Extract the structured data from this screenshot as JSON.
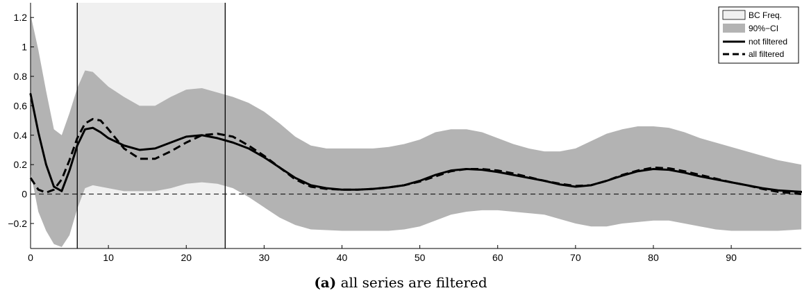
{
  "chart_data": {
    "type": "line",
    "title": "",
    "xlabel": "",
    "ylabel": "",
    "xlim": [
      0,
      99
    ],
    "ylim": [
      -0.37,
      1.3
    ],
    "x_ticks": [
      0,
      10,
      20,
      30,
      40,
      50,
      60,
      70,
      80,
      90
    ],
    "x_tick_labels": [
      "0",
      "10",
      "20",
      "30",
      "40",
      "50",
      "60",
      "70",
      "80",
      "90"
    ],
    "y_ticks": [
      -0.2,
      0,
      0.2,
      0.4,
      0.6,
      0.8,
      1,
      1.2
    ],
    "y_tick_labels": [
      "−0.2",
      "0",
      "0.2",
      "0.4",
      "0.6",
      "0.8",
      "1",
      "1.2"
    ],
    "grid": false,
    "zero_line": true,
    "bc_band": {
      "name": "BC Freq.",
      "x_start": 6,
      "x_end": 25,
      "color": "#f0f0f0"
    },
    "ci_band": {
      "name": "90%−CI",
      "color": "#b3b3b3",
      "x": [
        0,
        1,
        2,
        3,
        4,
        5,
        6,
        7,
        8,
        9,
        10,
        12,
        14,
        16,
        18,
        20,
        22,
        24,
        26,
        28,
        30,
        32,
        34,
        36,
        38,
        40,
        42,
        44,
        46,
        48,
        50,
        52,
        54,
        56,
        58,
        60,
        62,
        64,
        66,
        68,
        70,
        72,
        74,
        76,
        78,
        80,
        82,
        84,
        86,
        88,
        90,
        92,
        94,
        96,
        99
      ],
      "upper": [
        1.22,
        0.98,
        0.7,
        0.44,
        0.4,
        0.55,
        0.72,
        0.84,
        0.83,
        0.78,
        0.73,
        0.66,
        0.6,
        0.6,
        0.66,
        0.71,
        0.72,
        0.69,
        0.66,
        0.62,
        0.56,
        0.48,
        0.39,
        0.33,
        0.31,
        0.31,
        0.31,
        0.31,
        0.32,
        0.34,
        0.37,
        0.42,
        0.44,
        0.44,
        0.42,
        0.38,
        0.34,
        0.31,
        0.29,
        0.29,
        0.31,
        0.36,
        0.41,
        0.44,
        0.46,
        0.46,
        0.45,
        0.42,
        0.38,
        0.35,
        0.32,
        0.29,
        0.26,
        0.23,
        0.2
      ],
      "lower": [
        0.15,
        -0.12,
        -0.25,
        -0.34,
        -0.36,
        -0.28,
        -0.1,
        0.04,
        0.06,
        0.05,
        0.04,
        0.02,
        0.02,
        0.02,
        0.04,
        0.07,
        0.08,
        0.07,
        0.04,
        -0.02,
        -0.09,
        -0.16,
        -0.21,
        -0.24,
        -0.245,
        -0.25,
        -0.25,
        -0.25,
        -0.25,
        -0.24,
        -0.22,
        -0.18,
        -0.14,
        -0.12,
        -0.11,
        -0.11,
        -0.12,
        -0.13,
        -0.14,
        -0.17,
        -0.2,
        -0.22,
        -0.22,
        -0.2,
        -0.19,
        -0.18,
        -0.18,
        -0.2,
        -0.22,
        -0.24,
        -0.25,
        -0.25,
        -0.25,
        -0.25,
        -0.24
      ]
    },
    "series": [
      {
        "name": "not filtered",
        "style": "solid",
        "x": [
          0,
          1,
          2,
          3,
          4,
          5,
          6,
          7,
          8,
          9,
          10,
          12,
          14,
          16,
          18,
          20,
          22,
          24,
          26,
          28,
          30,
          32,
          34,
          36,
          38,
          40,
          42,
          44,
          46,
          48,
          50,
          52,
          54,
          56,
          58,
          60,
          62,
          64,
          66,
          68,
          70,
          72,
          74,
          76,
          78,
          80,
          82,
          84,
          86,
          88,
          90,
          92,
          94,
          96,
          99
        ],
        "values": [
          0.68,
          0.42,
          0.2,
          0.05,
          0.02,
          0.16,
          0.33,
          0.44,
          0.45,
          0.42,
          0.38,
          0.33,
          0.3,
          0.31,
          0.35,
          0.39,
          0.4,
          0.38,
          0.35,
          0.31,
          0.25,
          0.18,
          0.11,
          0.06,
          0.04,
          0.03,
          0.03,
          0.035,
          0.045,
          0.06,
          0.09,
          0.13,
          0.16,
          0.17,
          0.165,
          0.15,
          0.13,
          0.11,
          0.09,
          0.065,
          0.05,
          0.06,
          0.09,
          0.125,
          0.155,
          0.17,
          0.165,
          0.145,
          0.12,
          0.1,
          0.08,
          0.06,
          0.04,
          0.025,
          0.015
        ]
      },
      {
        "name": "all filtered",
        "style": "dashed",
        "x": [
          0,
          1,
          2,
          3,
          4,
          5,
          6,
          7,
          8,
          9,
          10,
          12,
          14,
          16,
          18,
          20,
          22,
          24,
          26,
          28,
          30,
          32,
          34,
          36,
          38,
          40,
          42,
          44,
          46,
          48,
          50,
          52,
          54,
          56,
          58,
          60,
          62,
          64,
          66,
          68,
          70,
          72,
          74,
          76,
          78,
          80,
          82,
          84,
          86,
          88,
          90,
          92,
          94,
          96,
          99
        ],
        "values": [
          0.11,
          0.03,
          0.01,
          0.03,
          0.1,
          0.23,
          0.38,
          0.48,
          0.51,
          0.5,
          0.44,
          0.31,
          0.24,
          0.24,
          0.29,
          0.35,
          0.4,
          0.41,
          0.39,
          0.33,
          0.26,
          0.18,
          0.1,
          0.05,
          0.035,
          0.03,
          0.03,
          0.035,
          0.045,
          0.06,
          0.085,
          0.12,
          0.155,
          0.17,
          0.17,
          0.16,
          0.14,
          0.115,
          0.09,
          0.07,
          0.055,
          0.06,
          0.09,
          0.13,
          0.16,
          0.18,
          0.175,
          0.155,
          0.13,
          0.105,
          0.08,
          0.06,
          0.035,
          0.015,
          0.0
        ]
      }
    ],
    "legend": {
      "placement": "top-right",
      "entries": [
        "BC Freq.",
        "90%−CI",
        "not filtered",
        "all filtered"
      ]
    },
    "caption_label": "(a)",
    "caption_text": "all series are filtered"
  }
}
